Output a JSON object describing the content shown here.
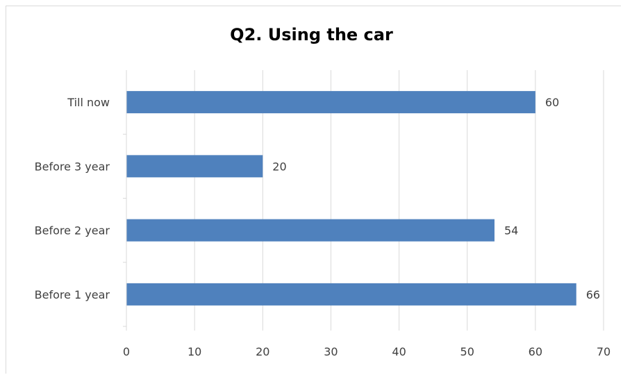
{
  "chart_data": {
    "type": "bar",
    "orientation": "horizontal",
    "title": "Q2. Using the car",
    "xlabel": "",
    "ylabel": "",
    "categories": [
      "Before 1 year",
      "Before 2 year",
      "Before 3 year",
      "Till now"
    ],
    "values": [
      66,
      54,
      20,
      60
    ],
    "xlim": [
      0,
      70
    ],
    "xticks": [
      0,
      10,
      20,
      30,
      40,
      50,
      60,
      70
    ],
    "grid": true,
    "legend": "none",
    "data_labels": true,
    "colors": {
      "bar": "#4f81bd",
      "grid": "#d9d9d9",
      "text": "#404040"
    }
  }
}
